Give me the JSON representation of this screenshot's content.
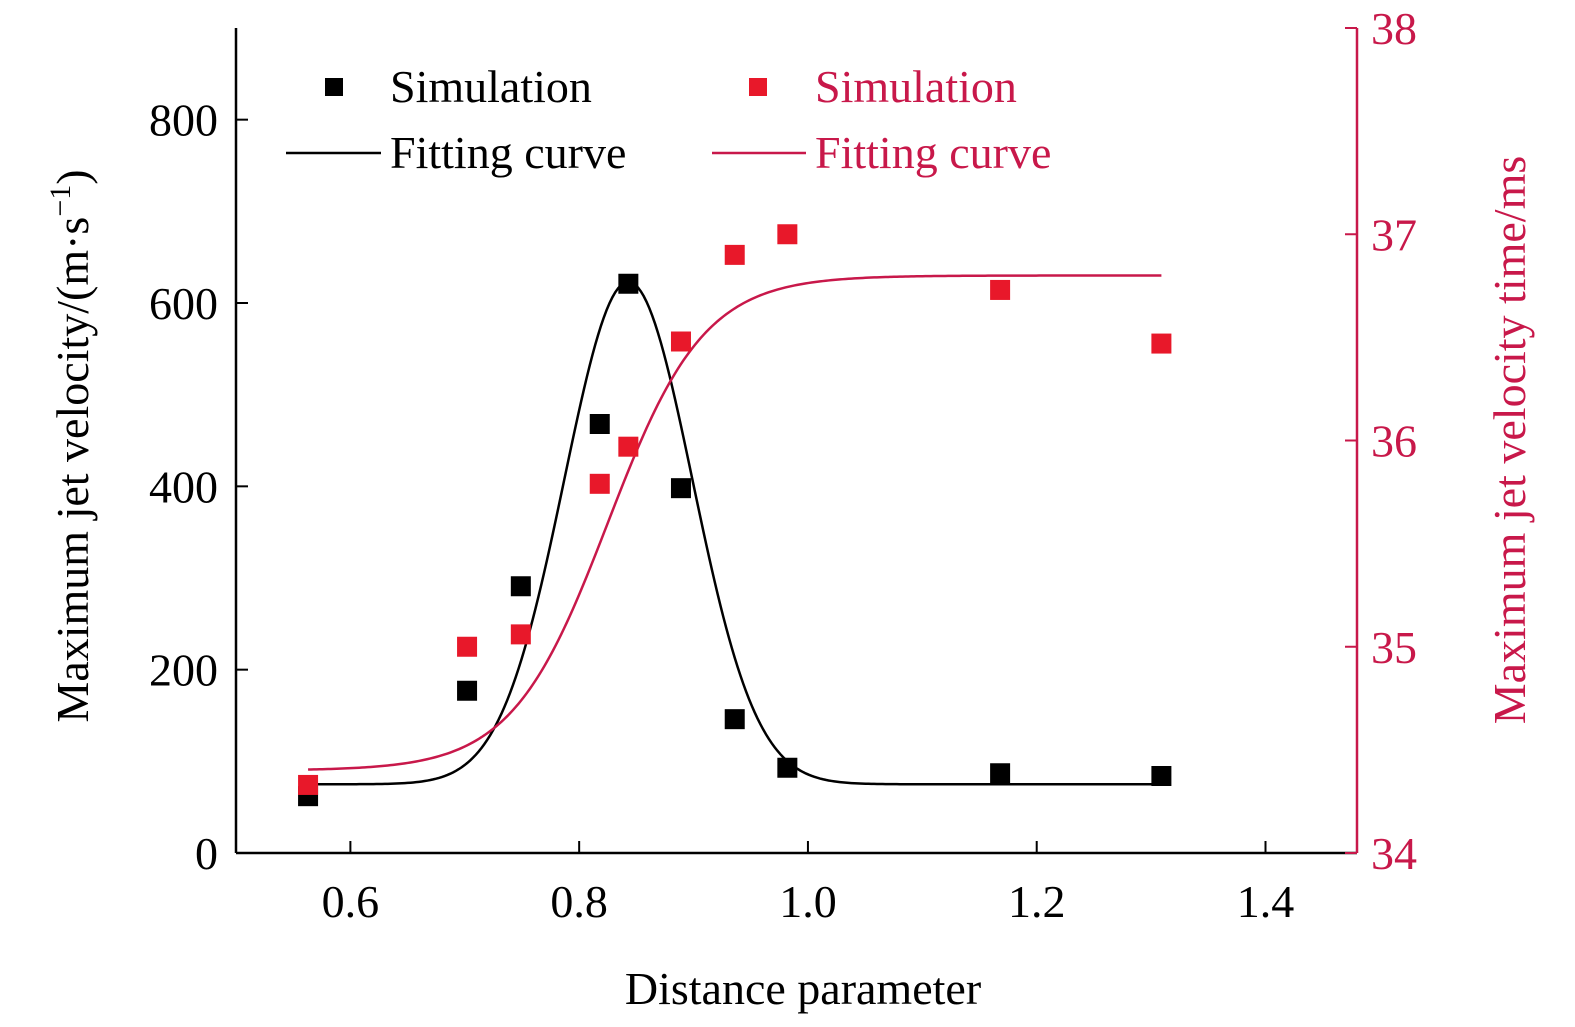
{
  "chart_data": {
    "type": "scatter",
    "xlabel": "Distance parameter",
    "ylabel_left": "Maximum jet velocity/(m·s",
    "ylabel_left_exp": "−1",
    "ylabel_left_close": ")",
    "ylabel_right": "Maximum jet velocity time/ms",
    "xlim": [
      0.5,
      1.48
    ],
    "ylim_left": [
      0,
      900
    ],
    "ylim_right": [
      34,
      38
    ],
    "xticks": [
      "0.6",
      "0.8",
      "1.0",
      "1.2",
      "1.4"
    ],
    "yticks_left": [
      "0",
      "200",
      "400",
      "600",
      "800"
    ],
    "yticks_right": [
      "34",
      "35",
      "36",
      "37",
      "38"
    ],
    "colors": {
      "left": "#000000",
      "right": "#c8184a",
      "right_marker": "#e8182a"
    },
    "legend": [
      {
        "label": "Simulation",
        "kind": "marker",
        "color": "#000000"
      },
      {
        "label": "Fitting curve",
        "kind": "line",
        "color": "#000000"
      },
      {
        "label": "Simulation",
        "kind": "marker",
        "color": "#e8182a"
      },
      {
        "label": "Fitting curve",
        "kind": "line",
        "color": "#c8184a"
      }
    ],
    "series": [
      {
        "name": "Simulation",
        "axis": "left",
        "kind": "scatter",
        "x": [
          0.563,
          0.702,
          0.749,
          0.818,
          0.843,
          0.889,
          0.936,
          0.982,
          1.168,
          1.309
        ],
        "y": [
          62,
          177,
          291,
          468,
          621,
          398,
          146,
          93,
          87,
          84
        ]
      },
      {
        "name": "Fitting curve",
        "axis": "left",
        "kind": "curve",
        "model": "gaussian",
        "params": {
          "y0": 75,
          "A": 548,
          "xc": 0.843,
          "w": 0.056
        },
        "x_range": [
          0.563,
          1.309
        ]
      },
      {
        "name": "Simulation",
        "axis": "right",
        "kind": "scatter",
        "x": [
          0.563,
          0.702,
          0.749,
          0.818,
          0.843,
          0.889,
          0.936,
          0.982,
          1.168,
          1.309
        ],
        "y": [
          34.33,
          35.0,
          35.06,
          35.79,
          35.97,
          36.48,
          36.9,
          37.0,
          36.73,
          36.47
        ]
      },
      {
        "name": "Fitting curve",
        "axis": "right",
        "kind": "curve",
        "model": "sigmoid",
        "params": {
          "bottom": 34.4,
          "top": 36.8,
          "x0": 0.825,
          "k": 0.042
        },
        "x_range": [
          0.563,
          1.309
        ]
      }
    ]
  }
}
